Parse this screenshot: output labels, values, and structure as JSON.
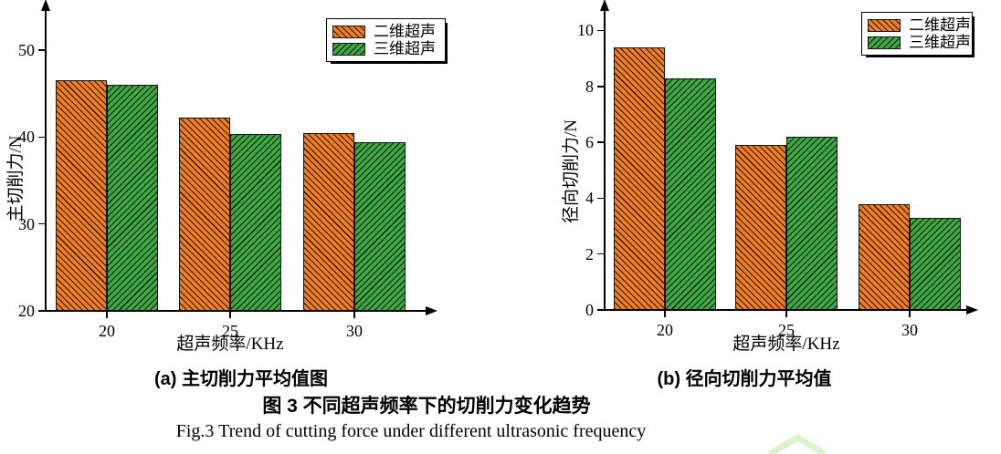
{
  "figure": {
    "title_cn": "图 3 不同超声频率下的切削力变化趋势",
    "title_en": "Fig.3 Trend of cutting force under different ultrasonic frequency"
  },
  "colors": {
    "series_2d": "#F07E22",
    "series_3d": "#3FA844",
    "axis": "#000000",
    "watermark": "#D9F4CC"
  },
  "chart_data": [
    {
      "id": "a",
      "type": "bar",
      "subcaption": "(a) 主切削力平均值图",
      "xlabel": "超声频率/KHz",
      "ylabel": "主切削力/N",
      "categories": [
        "20",
        "25",
        "30"
      ],
      "series": [
        {
          "name": "二维超声",
          "values": [
            46.5,
            42.2,
            40.4
          ],
          "color_key": "series_2d",
          "hatch": "backslash"
        },
        {
          "name": "三维超声",
          "values": [
            46.0,
            40.3,
            39.4
          ],
          "color_key": "series_3d",
          "hatch": "slash"
        }
      ],
      "ylim": [
        20,
        54.5
      ],
      "yticks": [
        20,
        30,
        40,
        50
      ],
      "grid": false,
      "legend_position": "top-right"
    },
    {
      "id": "b",
      "type": "bar",
      "subcaption": "(b) 径向切削力平均值",
      "xlabel": "超声频率/KHz",
      "ylabel": "径向切削力/N",
      "categories": [
        "20",
        "25",
        "30"
      ],
      "series": [
        {
          "name": "二维超声",
          "values": [
            9.4,
            5.9,
            3.8
          ],
          "color_key": "series_2d",
          "hatch": "backslash"
        },
        {
          "name": "三维超声",
          "values": [
            8.3,
            6.2,
            3.3
          ],
          "color_key": "series_3d",
          "hatch": "slash"
        }
      ],
      "ylim": [
        0,
        10.7
      ],
      "yticks": [
        0,
        2,
        4,
        6,
        8,
        10
      ],
      "grid": false,
      "legend_position": "top-right"
    }
  ]
}
